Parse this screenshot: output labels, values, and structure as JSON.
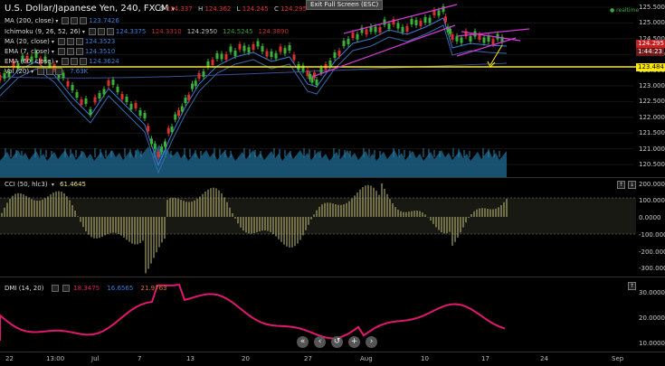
{
  "header": {
    "symbol_title": "U.S. Dollar/Japanese Yen, 240, FXCM",
    "ohlc": {
      "o_label": "O",
      "o": "124.337",
      "h_label": "H",
      "h": "124.362",
      "l_label": "L",
      "l": "124.245",
      "c_label": "C",
      "c": "124.295"
    },
    "exit_full_screen": "Exit Full Screen (ESC)",
    "realtime": "realtime"
  },
  "indicators_main": [
    {
      "name": "MA (200, close)",
      "values": [
        "123.7426"
      ],
      "colors": [
        "#3b7dd8"
      ]
    },
    {
      "name": "Ichimoku (9, 26, 52, 26)",
      "values": [
        "124.3375",
        "124.3310",
        "124.2950",
        "124.5245",
        "124.3890"
      ],
      "colors": [
        "#3b7dd8",
        "#c03030",
        "#bbbbbb",
        "#3a9a3a",
        "#c03030"
      ]
    },
    {
      "name": "MA (20, close)",
      "values": [
        "124.3523"
      ],
      "colors": [
        "#3b7dd8"
      ]
    },
    {
      "name": "EMA (7, close)",
      "values": [
        "124.3510"
      ],
      "colors": [
        "#3b7dd8"
      ]
    },
    {
      "name": "EMA (60, close)",
      "values": [
        "124.3624"
      ],
      "colors": [
        "#3b7dd8"
      ]
    },
    {
      "name": "Vol (20)",
      "values": [
        "",
        "7.63K"
      ],
      "colors": [
        "#3b7dd8",
        "#3b7dd8"
      ]
    }
  ],
  "price_axis": {
    "ticks": [
      "125.500",
      "125.000",
      "124.500",
      "124.000",
      "123.500",
      "123.000",
      "122.500",
      "122.000",
      "121.500",
      "121.000",
      "120.500"
    ],
    "current_price": "124.295",
    "countdown": "1:44:23",
    "support_level": "123.484"
  },
  "cci": {
    "name": "CCI (50, hlc3)",
    "value": "61.4645",
    "ticks": [
      "200.0000",
      "100.0000",
      "0.0000",
      "-100.0000",
      "-200.0000",
      "-300.0000"
    ]
  },
  "dmi": {
    "name": "DMI (14, 20)",
    "values": [
      "18.3475",
      "16.6565",
      "21.9763"
    ],
    "colors": [
      "#e0186e",
      "#3b7dd8",
      "#e0702a"
    ],
    "ticks": [
      "30.0000",
      "20.0000",
      "10.0000"
    ]
  },
  "x_axis": {
    "labels": [
      "22",
      "13:00",
      "Jul",
      "7",
      "13",
      "20",
      "27",
      "Aug",
      "10",
      "17",
      "24",
      "Sep"
    ]
  },
  "nav_buttons": [
    "«",
    "‹",
    "↺",
    "+",
    "›"
  ],
  "colors": {
    "background": "#000000",
    "support_line": "#ffeb00",
    "channel": "#d63ad6",
    "dmi_line": "#e0186e",
    "cci_bars": "#c6c47a",
    "volume": "#1c5f82"
  }
}
